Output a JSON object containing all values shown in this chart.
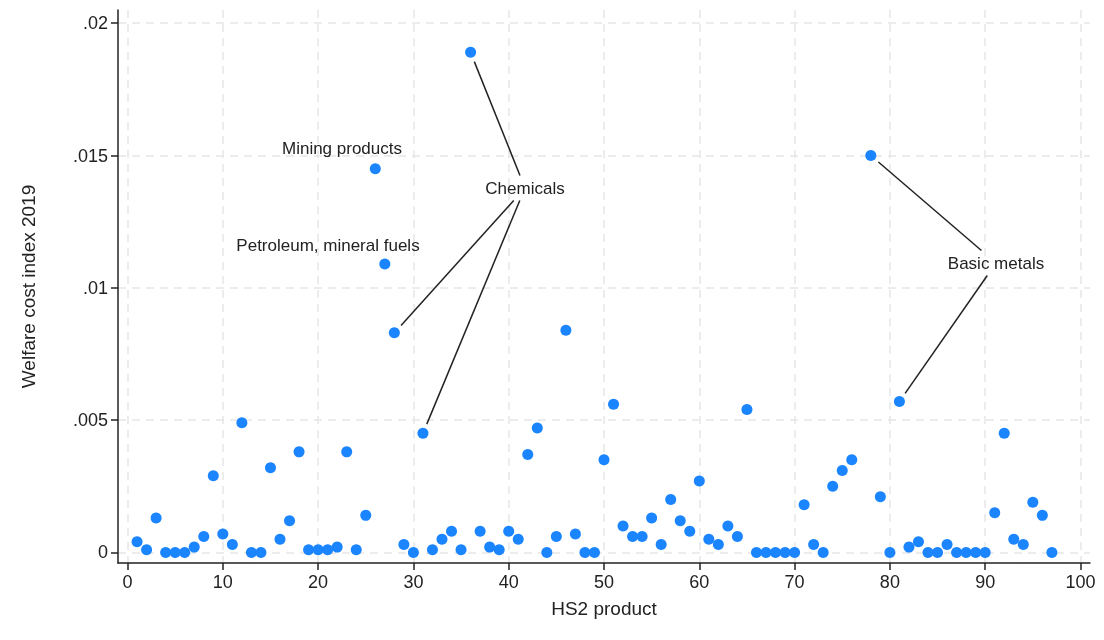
{
  "chart_data": {
    "type": "scatter",
    "xlabel": "HS2 product",
    "ylabel": "Welfare cost index 2019",
    "x": [
      1,
      2,
      3,
      4,
      5,
      6,
      7,
      8,
      9,
      10,
      11,
      12,
      13,
      14,
      15,
      16,
      17,
      18,
      19,
      20,
      21,
      22,
      23,
      24,
      25,
      26,
      27,
      28,
      29,
      30,
      31,
      32,
      33,
      34,
      35,
      36,
      37,
      38,
      39,
      40,
      41,
      42,
      43,
      44,
      45,
      46,
      47,
      48,
      49,
      50,
      51,
      52,
      53,
      54,
      55,
      56,
      57,
      58,
      59,
      60,
      61,
      62,
      63,
      64,
      65,
      66,
      67,
      68,
      69,
      70,
      71,
      72,
      73,
      74,
      75,
      76,
      78,
      79,
      80,
      81,
      82,
      83,
      84,
      85,
      86,
      87,
      88,
      89,
      90,
      91,
      92,
      93,
      94,
      95,
      96,
      97
    ],
    "values": [
      0.0004,
      0.0001,
      0.0013,
      0,
      0,
      0,
      0.0002,
      0.0006,
      0.0029,
      0.0007,
      0.0003,
      0.0049,
      0,
      0,
      0.0032,
      0.0005,
      0.0012,
      0.0038,
      0.0001,
      0.0001,
      0.0001,
      0.0002,
      0.0038,
      0.0001,
      0.0014,
      0.0145,
      0.0109,
      0.0083,
      0.0003,
      0,
      0.0045,
      0.0001,
      0.0005,
      0.0008,
      0.0001,
      0.0189,
      0.0008,
      0.0002,
      0.0001,
      0.0008,
      0.0005,
      0.0037,
      0.0047,
      0,
      0.0006,
      0.0084,
      0.0007,
      0,
      0,
      0.0035,
      0.0056,
      0.001,
      0.0006,
      0.0006,
      0.0013,
      0.0003,
      0.002,
      0.0012,
      0.0008,
      0.0027,
      0.0005,
      0.0003,
      0.001,
      0.0006,
      0.0054,
      0,
      0,
      0,
      0,
      0,
      0.0018,
      0.0003,
      0,
      0.0025,
      0.0031,
      0.0035,
      0.015,
      0.0021,
      0,
      0.0057,
      0.0002,
      0.0004,
      0,
      0,
      0.0003,
      0,
      0,
      0,
      0,
      0.0015,
      0.0045,
      0.0005,
      0.0003,
      0.0019,
      0.0014,
      0
    ],
    "color": "#1a85ff",
    "marker": "circle",
    "grid": true,
    "xlim": [
      -1,
      101
    ],
    "xticks": [
      0,
      10,
      20,
      30,
      40,
      50,
      60,
      70,
      80,
      90,
      100
    ],
    "ylim": [
      -0.0004,
      0.0205
    ],
    "yticks": [
      {
        "value": 0,
        "label": "0"
      },
      {
        "value": 0.005,
        "label": ".005"
      },
      {
        "value": 0.01,
        "label": ".01"
      },
      {
        "value": 0.015,
        "label": ".015"
      },
      {
        "value": 0.02,
        "label": ".02"
      }
    ],
    "annotations": [
      "Mining products",
      "Petroleum, mineral fuels",
      "Chemicals",
      "Basic metals"
    ]
  }
}
